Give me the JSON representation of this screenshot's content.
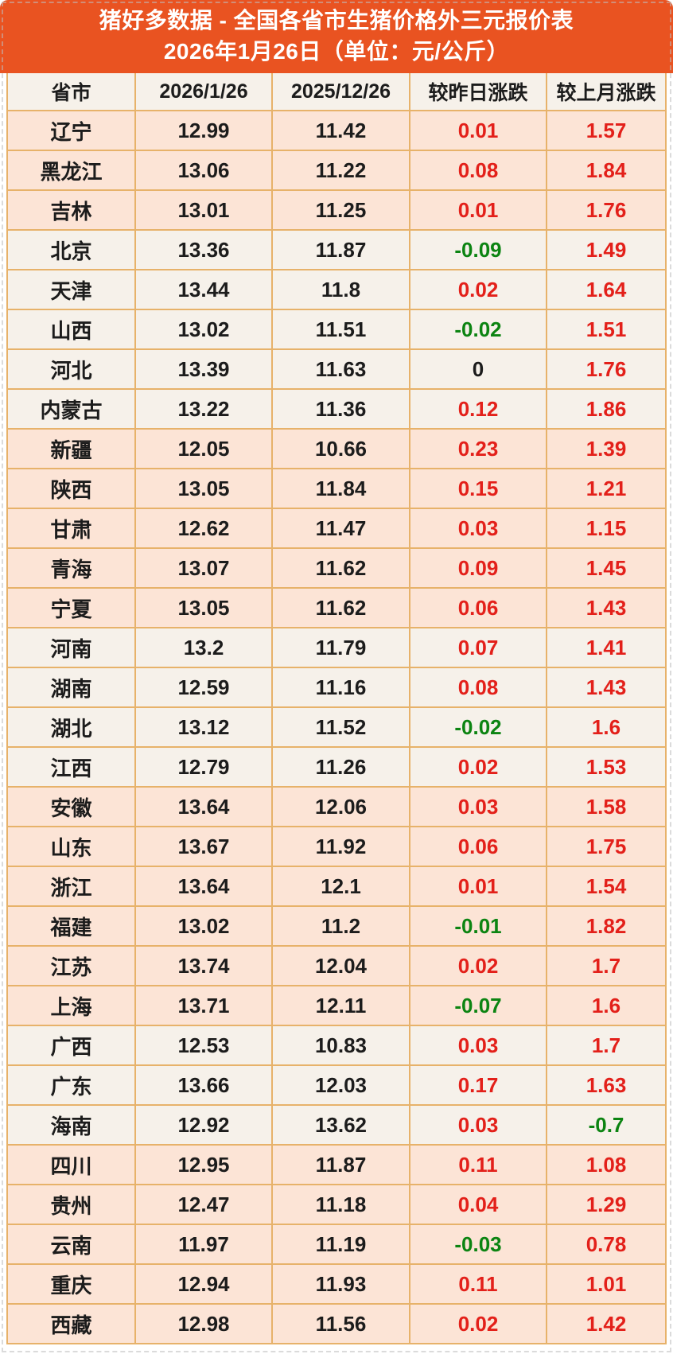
{
  "header": {
    "title": "猪好多数据 - 全国各省市生猪价格外三元报价表",
    "subtitle": "2026年1月26日（单位：元/公斤）"
  },
  "colors": {
    "header_bg": "#e95321",
    "header_text": "#ffffff",
    "row_pink": "#fce4d6",
    "row_cream": "#f6f1ea",
    "grid_border": "#e7b26a",
    "value_up": "#e3201a",
    "value_down": "#0c8412",
    "text": "#1c1c1c"
  },
  "chart_data": {
    "type": "table",
    "title": "猪好多数据 - 全国各省市生猪价格外三元报价表",
    "subtitle": "2026年1月26日（单位：元/公斤）",
    "columns": [
      "省市",
      "2026/1/26",
      "2025/12/26",
      "较昨日涨跌",
      "较上月涨跌"
    ],
    "rows": [
      {
        "province": "辽宁",
        "current": "12.99",
        "previous": "11.42",
        "day_change": "0.01",
        "month_change": "1.57",
        "band": "pink"
      },
      {
        "province": "黑龙江",
        "current": "13.06",
        "previous": "11.22",
        "day_change": "0.08",
        "month_change": "1.84",
        "band": "pink"
      },
      {
        "province": "吉林",
        "current": "13.01",
        "previous": "11.25",
        "day_change": "0.01",
        "month_change": "1.76",
        "band": "pink"
      },
      {
        "province": "北京",
        "current": "13.36",
        "previous": "11.87",
        "day_change": "-0.09",
        "month_change": "1.49",
        "band": "cream"
      },
      {
        "province": "天津",
        "current": "13.44",
        "previous": "11.8",
        "day_change": "0.02",
        "month_change": "1.64",
        "band": "cream"
      },
      {
        "province": "山西",
        "current": "13.02",
        "previous": "11.51",
        "day_change": "-0.02",
        "month_change": "1.51",
        "band": "cream"
      },
      {
        "province": "河北",
        "current": "13.39",
        "previous": "11.63",
        "day_change": "0",
        "month_change": "1.76",
        "band": "cream"
      },
      {
        "province": "内蒙古",
        "current": "13.22",
        "previous": "11.36",
        "day_change": "0.12",
        "month_change": "1.86",
        "band": "cream"
      },
      {
        "province": "新疆",
        "current": "12.05",
        "previous": "10.66",
        "day_change": "0.23",
        "month_change": "1.39",
        "band": "pink"
      },
      {
        "province": "陕西",
        "current": "13.05",
        "previous": "11.84",
        "day_change": "0.15",
        "month_change": "1.21",
        "band": "pink"
      },
      {
        "province": "甘肃",
        "current": "12.62",
        "previous": "11.47",
        "day_change": "0.03",
        "month_change": "1.15",
        "band": "pink"
      },
      {
        "province": "青海",
        "current": "13.07",
        "previous": "11.62",
        "day_change": "0.09",
        "month_change": "1.45",
        "band": "pink"
      },
      {
        "province": "宁夏",
        "current": "13.05",
        "previous": "11.62",
        "day_change": "0.06",
        "month_change": "1.43",
        "band": "pink"
      },
      {
        "province": "河南",
        "current": "13.2",
        "previous": "11.79",
        "day_change": "0.07",
        "month_change": "1.41",
        "band": "cream"
      },
      {
        "province": "湖南",
        "current": "12.59",
        "previous": "11.16",
        "day_change": "0.08",
        "month_change": "1.43",
        "band": "cream"
      },
      {
        "province": "湖北",
        "current": "13.12",
        "previous": "11.52",
        "day_change": "-0.02",
        "month_change": "1.6",
        "band": "cream"
      },
      {
        "province": "江西",
        "current": "12.79",
        "previous": "11.26",
        "day_change": "0.02",
        "month_change": "1.53",
        "band": "cream"
      },
      {
        "province": "安徽",
        "current": "13.64",
        "previous": "12.06",
        "day_change": "0.03",
        "month_change": "1.58",
        "band": "pink"
      },
      {
        "province": "山东",
        "current": "13.67",
        "previous": "11.92",
        "day_change": "0.06",
        "month_change": "1.75",
        "band": "pink"
      },
      {
        "province": "浙江",
        "current": "13.64",
        "previous": "12.1",
        "day_change": "0.01",
        "month_change": "1.54",
        "band": "pink"
      },
      {
        "province": "福建",
        "current": "13.02",
        "previous": "11.2",
        "day_change": "-0.01",
        "month_change": "1.82",
        "band": "pink"
      },
      {
        "province": "江苏",
        "current": "13.74",
        "previous": "12.04",
        "day_change": "0.02",
        "month_change": "1.7",
        "band": "pink"
      },
      {
        "province": "上海",
        "current": "13.71",
        "previous": "12.11",
        "day_change": "-0.07",
        "month_change": "1.6",
        "band": "pink"
      },
      {
        "province": "广西",
        "current": "12.53",
        "previous": "10.83",
        "day_change": "0.03",
        "month_change": "1.7",
        "band": "cream"
      },
      {
        "province": "广东",
        "current": "13.66",
        "previous": "12.03",
        "day_change": "0.17",
        "month_change": "1.63",
        "band": "cream"
      },
      {
        "province": "海南",
        "current": "12.92",
        "previous": "13.62",
        "day_change": "0.03",
        "month_change": "-0.7",
        "band": "cream"
      },
      {
        "province": "四川",
        "current": "12.95",
        "previous": "11.87",
        "day_change": "0.11",
        "month_change": "1.08",
        "band": "pink"
      },
      {
        "province": "贵州",
        "current": "12.47",
        "previous": "11.18",
        "day_change": "0.04",
        "month_change": "1.29",
        "band": "pink"
      },
      {
        "province": "云南",
        "current": "11.97",
        "previous": "11.19",
        "day_change": "-0.03",
        "month_change": "0.78",
        "band": "pink"
      },
      {
        "province": "重庆",
        "current": "12.94",
        "previous": "11.93",
        "day_change": "0.11",
        "month_change": "1.01",
        "band": "pink"
      },
      {
        "province": "西藏",
        "current": "12.98",
        "previous": "11.56",
        "day_change": "0.02",
        "month_change": "1.42",
        "band": "pink"
      }
    ]
  }
}
